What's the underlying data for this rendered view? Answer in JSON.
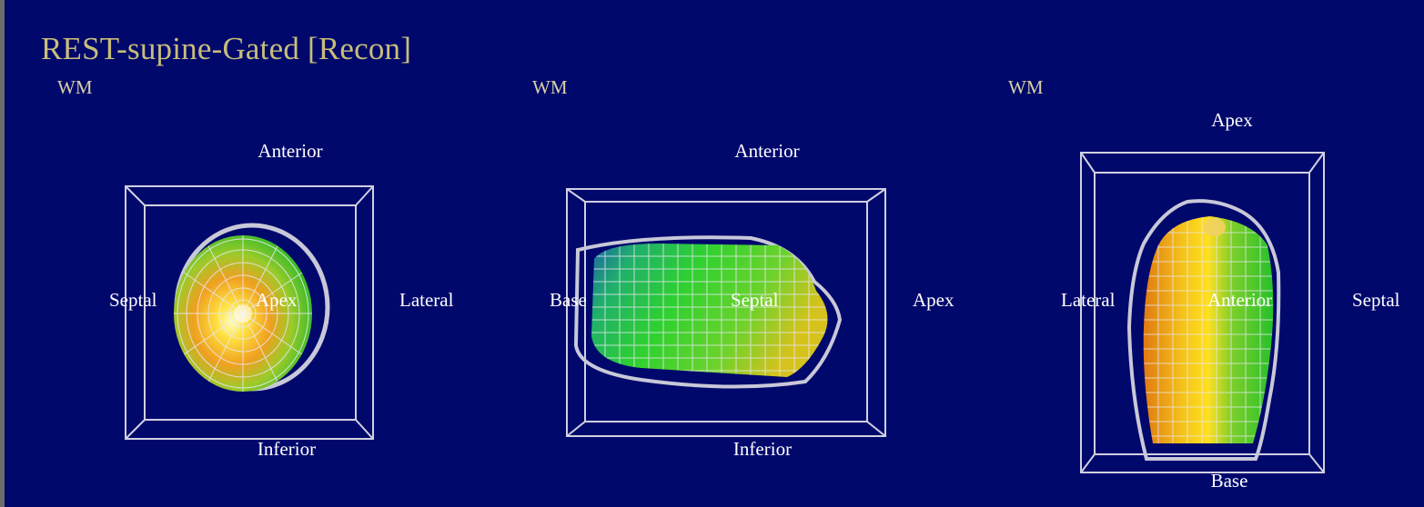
{
  "title": "REST-supine-Gated [Recon]",
  "views": [
    {
      "mode": "WM",
      "labels": {
        "top": "Anterior",
        "bottom": "Inferior",
        "left": "Septal",
        "right": "Lateral",
        "center": "Apex"
      }
    },
    {
      "mode": "WM",
      "labels": {
        "top": "Anterior",
        "bottom": "Inferior",
        "left": "Base",
        "right": "Apex",
        "center": "Septal"
      }
    },
    {
      "mode": "WM",
      "labels": {
        "top": "Apex",
        "bottom": "Base",
        "left": "Lateral",
        "right": "Septal",
        "center": "Anterior"
      }
    }
  ],
  "colors": {
    "background": "#00086c",
    "title": "#c8bd7a",
    "label": "#ffffff",
    "wireframe": "#c8c8d8",
    "perfusion_high": "#ffe020",
    "perfusion_mid": "#2fd12f",
    "perfusion_low": "#1e64aa"
  }
}
